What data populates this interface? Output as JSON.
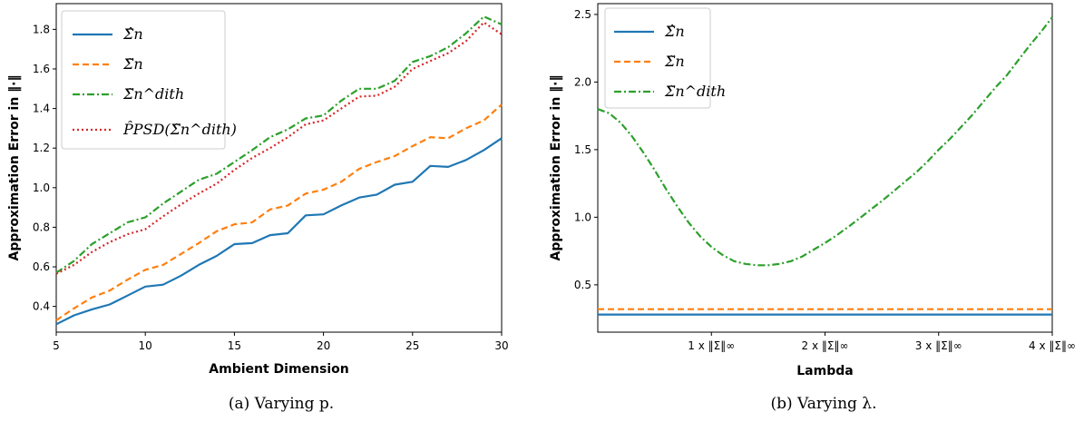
{
  "chart_data": [
    {
      "type": "line",
      "xlabel": "Ambient Dimension",
      "ylabel": "Approximation Error in ‖·‖",
      "caption": "(a) Varying p.",
      "xlim": [
        5,
        30
      ],
      "ylim": [
        0.27,
        1.93
      ],
      "xticks": [
        5,
        10,
        15,
        20,
        25,
        30
      ],
      "yticks": [
        0.4,
        0.6,
        0.8,
        1.0,
        1.2,
        1.4,
        1.6,
        1.8
      ],
      "grid": false,
      "legend_position": "top-left",
      "x": [
        5,
        6,
        7,
        8,
        9,
        10,
        11,
        12,
        13,
        14,
        15,
        16,
        17,
        18,
        19,
        20,
        21,
        22,
        23,
        24,
        25,
        26,
        27,
        28,
        29,
        30
      ],
      "series": [
        {
          "name": "Σ̂n",
          "color": "#1f77b4",
          "dash": "solid",
          "values": [
            0.31,
            0.355,
            0.385,
            0.41,
            0.455,
            0.5,
            0.51,
            0.555,
            0.61,
            0.655,
            0.715,
            0.72,
            0.76,
            0.77,
            0.86,
            0.865,
            0.91,
            0.95,
            0.965,
            1.015,
            1.03,
            1.11,
            1.105,
            1.14,
            1.19,
            1.25
          ]
        },
        {
          "name": "Σ̃n",
          "color": "#ff7f0e",
          "dash": "dashed",
          "values": [
            0.33,
            0.39,
            0.445,
            0.48,
            0.535,
            0.585,
            0.61,
            0.665,
            0.72,
            0.78,
            0.815,
            0.825,
            0.89,
            0.91,
            0.97,
            0.99,
            1.03,
            1.095,
            1.13,
            1.16,
            1.21,
            1.255,
            1.25,
            1.3,
            1.34,
            1.42
          ]
        },
        {
          "name": "Σ̃n^dith",
          "color": "#2ca02c",
          "dash": "dashdot",
          "values": [
            0.57,
            0.63,
            0.715,
            0.77,
            0.825,
            0.85,
            0.92,
            0.98,
            1.04,
            1.07,
            1.13,
            1.19,
            1.255,
            1.295,
            1.35,
            1.365,
            1.44,
            1.5,
            1.5,
            1.54,
            1.635,
            1.665,
            1.71,
            1.78,
            1.865,
            1.825
          ]
        },
        {
          "name": "P̂PSD(Σ̃n^dith)",
          "color": "#d62728",
          "dash": "dotted",
          "values": [
            0.565,
            0.61,
            0.675,
            0.725,
            0.765,
            0.79,
            0.855,
            0.915,
            0.97,
            1.02,
            1.09,
            1.15,
            1.2,
            1.255,
            1.32,
            1.34,
            1.4,
            1.46,
            1.465,
            1.51,
            1.6,
            1.64,
            1.68,
            1.74,
            1.835,
            1.775
          ]
        }
      ]
    },
    {
      "type": "line",
      "xlabel": "Lambda",
      "ylabel": "Approximation Error in ‖·‖",
      "caption": "(b) Varying λ.",
      "xlim": [
        0,
        4
      ],
      "ylim": [
        0.15,
        2.58
      ],
      "xtick_values": [
        1,
        2,
        3,
        4
      ],
      "xtick_labels": [
        "1 x ‖Σ‖∞",
        "2 x ‖Σ‖∞",
        "3 x ‖Σ‖∞",
        "4 x ‖Σ‖∞"
      ],
      "yticks": [
        0.5,
        1.0,
        1.5,
        2.0,
        2.5
      ],
      "grid": false,
      "legend_position": "top-left",
      "x": [
        0,
        0.1,
        0.2,
        0.3,
        0.4,
        0.5,
        0.6,
        0.7,
        0.8,
        0.9,
        1.0,
        1.1,
        1.2,
        1.3,
        1.4,
        1.5,
        1.6,
        1.7,
        1.8,
        1.9,
        2.0,
        2.1,
        2.2,
        2.3,
        2.4,
        2.5,
        2.6,
        2.7,
        2.8,
        2.9,
        3.0,
        3.1,
        3.2,
        3.3,
        3.4,
        3.5,
        3.6,
        3.7,
        3.8,
        3.9,
        4.0
      ],
      "series": [
        {
          "name": "Σ̂n",
          "color": "#1f77b4",
          "dash": "solid",
          "values": [
            0.28,
            0.28,
            0.28,
            0.28,
            0.28,
            0.28,
            0.28,
            0.28,
            0.28,
            0.28,
            0.28,
            0.28,
            0.28,
            0.28,
            0.28,
            0.28,
            0.28,
            0.28,
            0.28,
            0.28,
            0.28,
            0.28,
            0.28,
            0.28,
            0.28,
            0.28,
            0.28,
            0.28,
            0.28,
            0.28,
            0.28,
            0.28,
            0.28,
            0.28,
            0.28,
            0.28,
            0.28,
            0.28,
            0.28,
            0.28,
            0.28
          ]
        },
        {
          "name": "Σ̃n",
          "color": "#ff7f0e",
          "dash": "dashed",
          "values": [
            0.32,
            0.32,
            0.32,
            0.32,
            0.32,
            0.32,
            0.32,
            0.32,
            0.32,
            0.32,
            0.32,
            0.32,
            0.32,
            0.32,
            0.32,
            0.32,
            0.32,
            0.32,
            0.32,
            0.32,
            0.32,
            0.32,
            0.32,
            0.32,
            0.32,
            0.32,
            0.32,
            0.32,
            0.32,
            0.32,
            0.32,
            0.32,
            0.32,
            0.32,
            0.32,
            0.32,
            0.32,
            0.32,
            0.32,
            0.32,
            0.32
          ]
        },
        {
          "name": "Σ̃n^dith",
          "color": "#2ca02c",
          "dash": "dashdot",
          "values": [
            1.8,
            1.77,
            1.7,
            1.6,
            1.48,
            1.35,
            1.21,
            1.08,
            0.96,
            0.86,
            0.78,
            0.72,
            0.675,
            0.655,
            0.645,
            0.645,
            0.655,
            0.675,
            0.71,
            0.76,
            0.81,
            0.865,
            0.925,
            0.99,
            1.055,
            1.12,
            1.19,
            1.26,
            1.33,
            1.41,
            1.5,
            1.58,
            1.67,
            1.76,
            1.86,
            1.96,
            2.05,
            2.16,
            2.27,
            2.37,
            2.48
          ]
        }
      ]
    }
  ]
}
